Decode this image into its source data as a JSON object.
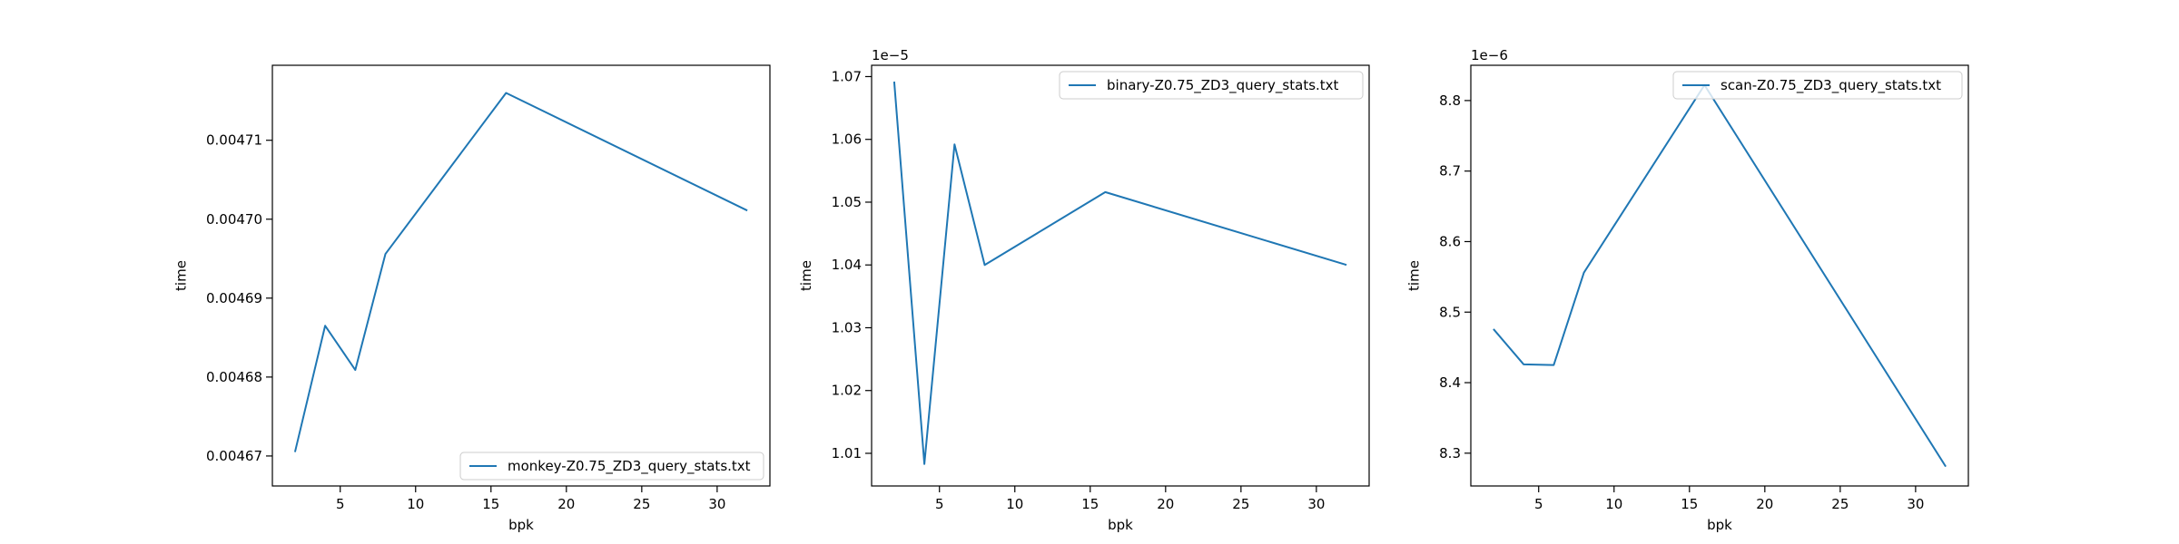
{
  "colors": {
    "line": "#1f77b4",
    "axes": "#000000",
    "background": "#ffffff"
  },
  "chart_data": [
    {
      "type": "line",
      "xlabel": "bpk",
      "ylabel": "time",
      "offset_text": "",
      "xlim": [
        0.5,
        33.5
      ],
      "ylim": [
        0.0046662,
        0.0047195
      ],
      "xticks": [
        5,
        10,
        15,
        20,
        25,
        30
      ],
      "xtick_labels": [
        "5",
        "10",
        "15",
        "20",
        "25",
        "30"
      ],
      "yticks": [
        0.00467,
        0.00468,
        0.00469,
        0.0047,
        0.00471
      ],
      "ytick_labels": [
        "0.00467",
        "0.00468",
        "0.00469",
        "0.00470",
        "0.00471"
      ],
      "legend_position": "lower right",
      "grid": false,
      "series": [
        {
          "name": "monkey-Z0.75_ZD3_query_stats.txt",
          "x": [
            2,
            4,
            6,
            8,
            16,
            32
          ],
          "y": [
            0.0046705,
            0.0046865,
            0.0046809,
            0.0046956,
            0.004716,
            0.0047011
          ]
        }
      ]
    },
    {
      "type": "line",
      "xlabel": "bpk",
      "ylabel": "time",
      "offset_text": "1e−5",
      "xlim": [
        0.5,
        33.5
      ],
      "ylim": [
        1.0048,
        1.0718
      ],
      "xticks": [
        5,
        10,
        15,
        20,
        25,
        30
      ],
      "xtick_labels": [
        "5",
        "10",
        "15",
        "20",
        "25",
        "30"
      ],
      "yticks": [
        1.01,
        1.02,
        1.03,
        1.04,
        1.05,
        1.06,
        1.07
      ],
      "ytick_labels": [
        "1.01",
        "1.02",
        "1.03",
        "1.04",
        "1.05",
        "1.06",
        "1.07"
      ],
      "legend_position": "upper right",
      "grid": false,
      "series": [
        {
          "name": "binary-Z0.75_ZD3_query_stats.txt",
          "x": [
            2,
            4,
            6,
            8,
            16,
            32
          ],
          "y": [
            1.0692,
            1.0083,
            1.0592,
            1.04,
            1.0516,
            1.04
          ]
        }
      ]
    },
    {
      "type": "line",
      "xlabel": "bpk",
      "ylabel": "time",
      "offset_text": "1e−6",
      "xlim": [
        0.5,
        33.5
      ],
      "ylim": [
        8.2535,
        8.85
      ],
      "xticks": [
        5,
        10,
        15,
        20,
        25,
        30
      ],
      "xtick_labels": [
        "5",
        "10",
        "15",
        "20",
        "25",
        "30"
      ],
      "yticks": [
        8.3,
        8.4,
        8.5,
        8.6,
        8.7,
        8.8
      ],
      "ytick_labels": [
        "8.3",
        "8.4",
        "8.5",
        "8.6",
        "8.7",
        "8.8"
      ],
      "legend_position": "upper right",
      "grid": false,
      "series": [
        {
          "name": "scan-Z0.75_ZD3_query_stats.txt",
          "x": [
            2,
            4,
            6,
            8,
            16,
            32
          ],
          "y": [
            8.476,
            8.426,
            8.425,
            8.556,
            8.822,
            8.281
          ]
        }
      ]
    }
  ]
}
